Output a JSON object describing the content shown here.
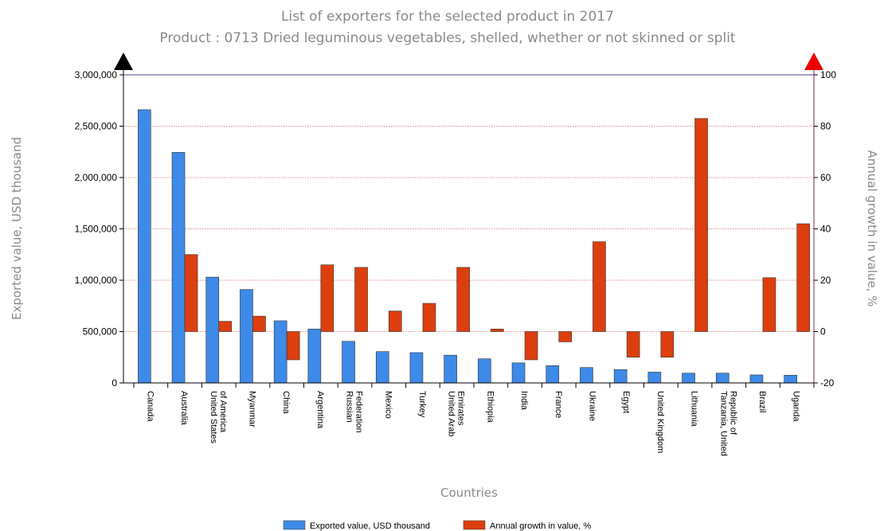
{
  "chart_data": {
    "type": "bar",
    "title": "List of exporters for the selected product in 2017",
    "subtitle": "Product : 0713 Dried leguminous vegetables, shelled, whether or not skinned or split",
    "xlabel": "Countries",
    "ylabel_left": "Exported value, USD thousand",
    "ylabel_right": "Annual growth in value, %",
    "ylim_left": [
      0,
      3000000
    ],
    "ylim_right": [
      -20,
      100
    ],
    "left_ticks": [
      "0",
      "500,000",
      "1,000,000",
      "1,500,000",
      "2,000,000",
      "2,500,000",
      "3,000,000"
    ],
    "right_ticks": [
      "-20",
      "0",
      "20",
      "40",
      "60",
      "80",
      "100"
    ],
    "grid": true,
    "legend_position": "bottom",
    "categories": [
      [
        "Canada"
      ],
      [
        "Australia"
      ],
      [
        "United States",
        "of America"
      ],
      [
        "Myanmar"
      ],
      [
        "China"
      ],
      [
        "Argentina"
      ],
      [
        "Russian",
        "Federation"
      ],
      [
        "Mexico"
      ],
      [
        "Turkey"
      ],
      [
        "United Arab",
        "Emirates"
      ],
      [
        "Ethiopia"
      ],
      [
        "India"
      ],
      [
        "France"
      ],
      [
        "Ukraine"
      ],
      [
        "Egypt"
      ],
      [
        "United Kingdom"
      ],
      [
        "Lithuania"
      ],
      [
        "Tanzania, United",
        "Republic of"
      ],
      [
        "Brazil"
      ],
      [
        "Uganda"
      ]
    ],
    "series": [
      {
        "name": "Exported value, USD thousand",
        "axis": "left",
        "color": "#3d8ae8",
        "values": [
          2660000,
          2245000,
          1030000,
          910000,
          605000,
          525000,
          405000,
          305000,
          295000,
          270000,
          235000,
          195000,
          168000,
          150000,
          130000,
          105000,
          95000,
          95000,
          78000,
          75000
        ]
      },
      {
        "name": "Annual growth in value, %",
        "axis": "right",
        "color": "#dd3e0e",
        "values": [
          null,
          30,
          4,
          6,
          -11,
          26,
          25,
          8,
          11,
          25,
          1,
          -11,
          -4,
          35,
          -10,
          -10,
          83,
          null,
          21,
          42
        ]
      }
    ]
  }
}
